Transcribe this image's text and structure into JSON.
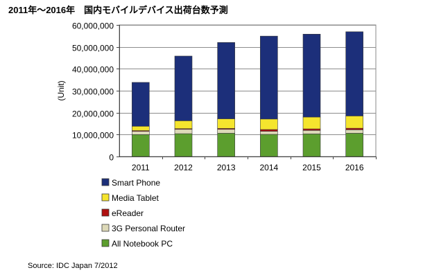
{
  "title": "2011年～2016年　国内モバイルデバイス出荷台数予測",
  "source": "Source: IDC Japan 7/2012",
  "chart_data": {
    "type": "bar",
    "stacked": true,
    "title": "2011年～2016年　国内モバイルデバイス出荷台数予測",
    "xlabel": "",
    "ylabel": "(Unit)",
    "ylim": [
      0,
      60000000
    ],
    "yticks": [
      0,
      10000000,
      20000000,
      30000000,
      40000000,
      50000000,
      60000000
    ],
    "ytick_labels": [
      "0",
      "10,000,000",
      "20,000,000",
      "30,000,000",
      "40,000,000",
      "50,000,000",
      "60,000,000"
    ],
    "grid": true,
    "legend_position": "bottom",
    "categories": [
      "2011",
      "2012",
      "2013",
      "2014",
      "2015",
      "2016"
    ],
    "series": [
      {
        "name": "All Notebook PC",
        "color": "#5c9e2e",
        "values": [
          10000000,
          10400000,
          10600000,
          10100000,
          10300000,
          10600000
        ]
      },
      {
        "name": "3G Personal Router",
        "color": "#ddd9b8",
        "values": [
          1500000,
          2000000,
          1800000,
          1400000,
          1600000,
          1600000
        ]
      },
      {
        "name": "eReader",
        "color": "#b01010",
        "values": [
          300000,
          300000,
          400000,
          800000,
          700000,
          700000
        ]
      },
      {
        "name": "Media Tablet",
        "color": "#f5e52e",
        "values": [
          2000000,
          3600000,
          4400000,
          4800000,
          5400000,
          5600000
        ]
      },
      {
        "name": "Smart Phone",
        "color": "#1c2f7a",
        "values": [
          20000000,
          29500000,
          34800000,
          37800000,
          37800000,
          38400000
        ]
      }
    ],
    "legend_order": [
      "Smart Phone",
      "Media Tablet",
      "eReader",
      "3G Personal Router",
      "All Notebook PC"
    ]
  }
}
